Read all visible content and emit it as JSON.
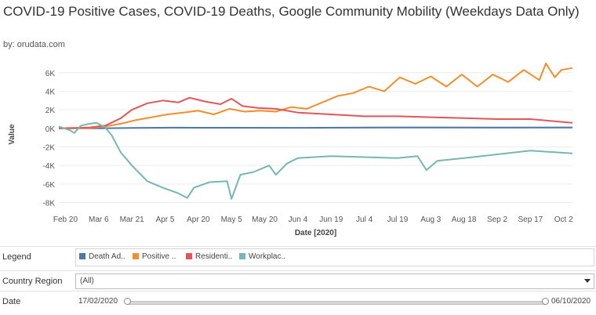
{
  "title": "COVID-19 Positive Cases, COVID-19 Deaths, Google Community Mobility (Weekdays Data Only)",
  "byline": "by: orudata.com",
  "filters": {
    "legend_label": "Legend",
    "country_label": "Country Region",
    "country_value": "(All)",
    "date_label": "Date",
    "date_start": "17/02/2020",
    "date_end": "06/10/2020"
  },
  "chart_data": {
    "type": "line",
    "xlabel": "Date [2020]",
    "ylabel": "Value",
    "ylim": [
      -8800,
      7500
    ],
    "yticks": [
      6000,
      4000,
      2000,
      0,
      -2000,
      -4000,
      -6000,
      -8000
    ],
    "ytick_labels": [
      "6K",
      "4K",
      "2K",
      "0K",
      "-2K",
      "-4K",
      "-6K",
      "-8K"
    ],
    "xticks": [
      "2020-02-20",
      "2020-03-06",
      "2020-03-21",
      "2020-04-05",
      "2020-04-20",
      "2020-05-05",
      "2020-05-20",
      "2020-06-04",
      "2020-06-19",
      "2020-07-04",
      "2020-07-19",
      "2020-08-03",
      "2020-08-18",
      "2020-09-02",
      "2020-09-17",
      "2020-10-02"
    ],
    "xtick_labels": [
      "Feb 20",
      "Mar 6",
      "Mar 21",
      "Apr 5",
      "Apr 20",
      "May 5",
      "May 20",
      "Jun 4",
      "Jun 19",
      "Jul 4",
      "Jul 19",
      "Aug 3",
      "Aug 18",
      "Sep 2",
      "Sep 17",
      "Oct 2"
    ],
    "x_range": [
      "2020-02-17",
      "2020-10-06"
    ],
    "grid": true,
    "series": [
      {
        "name": "Death Ad..",
        "color": "#4e79a7",
        "points": [
          [
            "2020-02-17",
            0
          ],
          [
            "2020-03-06",
            0
          ],
          [
            "2020-03-21",
            50
          ],
          [
            "2020-04-10",
            80
          ],
          [
            "2020-05-05",
            70
          ],
          [
            "2020-06-04",
            60
          ],
          [
            "2020-07-04",
            90
          ],
          [
            "2020-08-03",
            100
          ],
          [
            "2020-09-02",
            90
          ],
          [
            "2020-10-06",
            100
          ]
        ]
      },
      {
        "name": "Positive ..",
        "color": "#f28e2b",
        "points": [
          [
            "2020-02-17",
            0
          ],
          [
            "2020-03-02",
            30
          ],
          [
            "2020-03-09",
            200
          ],
          [
            "2020-03-16",
            500
          ],
          [
            "2020-03-23",
            900
          ],
          [
            "2020-03-30",
            1200
          ],
          [
            "2020-04-06",
            1500
          ],
          [
            "2020-04-13",
            1700
          ],
          [
            "2020-04-20",
            1900
          ],
          [
            "2020-04-27",
            1500
          ],
          [
            "2020-05-04",
            2100
          ],
          [
            "2020-05-11",
            1800
          ],
          [
            "2020-05-18",
            1900
          ],
          [
            "2020-05-25",
            1800
          ],
          [
            "2020-06-01",
            2300
          ],
          [
            "2020-06-08",
            2100
          ],
          [
            "2020-06-15",
            2800
          ],
          [
            "2020-06-22",
            3500
          ],
          [
            "2020-06-29",
            3800
          ],
          [
            "2020-07-06",
            4500
          ],
          [
            "2020-07-13",
            4000
          ],
          [
            "2020-07-20",
            5500
          ],
          [
            "2020-07-27",
            4800
          ],
          [
            "2020-08-03",
            5600
          ],
          [
            "2020-08-10",
            4500
          ],
          [
            "2020-08-17",
            5800
          ],
          [
            "2020-08-24",
            4500
          ],
          [
            "2020-08-31",
            5800
          ],
          [
            "2020-09-07",
            5000
          ],
          [
            "2020-09-14",
            6300
          ],
          [
            "2020-09-21",
            5200
          ],
          [
            "2020-09-24",
            7000
          ],
          [
            "2020-09-28",
            5500
          ],
          [
            "2020-10-01",
            6300
          ],
          [
            "2020-10-06",
            6500
          ]
        ]
      },
      {
        "name": "Residenti..",
        "color": "#e15759",
        "points": [
          [
            "2020-02-17",
            0
          ],
          [
            "2020-03-02",
            100
          ],
          [
            "2020-03-09",
            300
          ],
          [
            "2020-03-16",
            1100
          ],
          [
            "2020-03-21",
            2000
          ],
          [
            "2020-03-28",
            2700
          ],
          [
            "2020-04-04",
            3000
          ],
          [
            "2020-04-11",
            2800
          ],
          [
            "2020-04-16",
            3300
          ],
          [
            "2020-04-23",
            2900
          ],
          [
            "2020-04-30",
            2600
          ],
          [
            "2020-05-05",
            3200
          ],
          [
            "2020-05-10",
            2400
          ],
          [
            "2020-05-17",
            2200
          ],
          [
            "2020-05-25",
            2100
          ],
          [
            "2020-06-04",
            1700
          ],
          [
            "2020-06-19",
            1500
          ],
          [
            "2020-07-04",
            1300
          ],
          [
            "2020-07-19",
            1300
          ],
          [
            "2020-08-03",
            1200
          ],
          [
            "2020-08-18",
            1100
          ],
          [
            "2020-09-02",
            1000
          ],
          [
            "2020-09-17",
            1000
          ],
          [
            "2020-10-06",
            600
          ]
        ]
      },
      {
        "name": "Workplac..",
        "color": "#76b7b2",
        "points": [
          [
            "2020-02-17",
            200
          ],
          [
            "2020-02-22",
            -200
          ],
          [
            "2020-02-24",
            -500
          ],
          [
            "2020-02-27",
            300
          ],
          [
            "2020-03-02",
            500
          ],
          [
            "2020-03-05",
            600
          ],
          [
            "2020-03-09",
            100
          ],
          [
            "2020-03-12",
            -800
          ],
          [
            "2020-03-16",
            -2600
          ],
          [
            "2020-03-21",
            -4000
          ],
          [
            "2020-03-28",
            -5700
          ],
          [
            "2020-04-04",
            -6400
          ],
          [
            "2020-04-11",
            -7000
          ],
          [
            "2020-04-15",
            -7500
          ],
          [
            "2020-04-18",
            -6400
          ],
          [
            "2020-04-25",
            -5800
          ],
          [
            "2020-05-03",
            -5700
          ],
          [
            "2020-05-05",
            -7600
          ],
          [
            "2020-05-09",
            -5000
          ],
          [
            "2020-05-15",
            -4700
          ],
          [
            "2020-05-22",
            -4000
          ],
          [
            "2020-05-25",
            -5000
          ],
          [
            "2020-05-30",
            -3800
          ],
          [
            "2020-06-04",
            -3200
          ],
          [
            "2020-06-19",
            -3000
          ],
          [
            "2020-07-04",
            -3100
          ],
          [
            "2020-07-19",
            -3200
          ],
          [
            "2020-07-28",
            -3000
          ],
          [
            "2020-08-01",
            -4500
          ],
          [
            "2020-08-06",
            -3500
          ],
          [
            "2020-08-18",
            -3200
          ],
          [
            "2020-09-02",
            -2800
          ],
          [
            "2020-09-17",
            -2400
          ],
          [
            "2020-10-06",
            -2700
          ]
        ]
      }
    ]
  }
}
